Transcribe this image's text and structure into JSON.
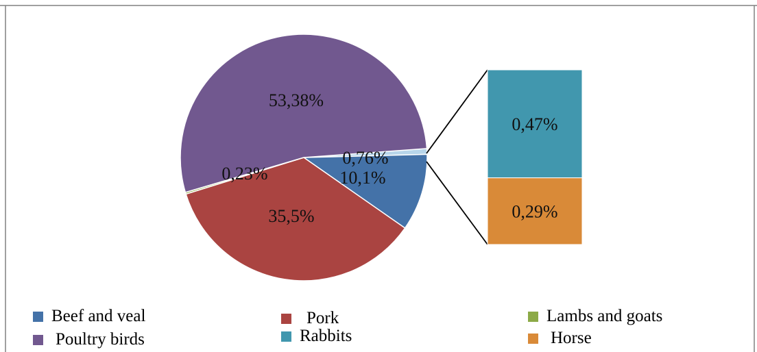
{
  "chart_data": {
    "type": "pie",
    "title": "",
    "subtitle": "",
    "labels_format": "comma-decimal",
    "slices": [
      {
        "name": "Beef and veal",
        "value": 10.1,
        "label": "10,1%",
        "color": "#4472a8"
      },
      {
        "name": "Pork",
        "value": 35.5,
        "label": "35,5%",
        "color": "#aa4441"
      },
      {
        "name": "Lambs and goats",
        "value": 0.23,
        "label": "0,23%",
        "color": "#8caa47"
      },
      {
        "name": "Poultry birds",
        "value": 53.38,
        "label": "53,38%",
        "color": "#71588f"
      },
      {
        "name": "Rabbits",
        "value": 0.47,
        "label": "0,76%",
        "color": "#4197ae",
        "note": "combined small-slice label shown on pie"
      },
      {
        "name": "Horse",
        "value": 0.29,
        "label": "",
        "color": "#d98a38"
      }
    ],
    "breakout": {
      "type": "bar-of-pie",
      "combined_label": "0,76%",
      "items": [
        {
          "name": "Rabbits",
          "value": 0.47,
          "label": "0,47%",
          "color": "#4197ae"
        },
        {
          "name": "Horse",
          "value": 0.29,
          "label": "0,29%",
          "color": "#d98a38"
        }
      ]
    },
    "legend": {
      "placement": "bottom",
      "items": [
        {
          "name": "Beef and veal",
          "color": "#4472a8"
        },
        {
          "name": "Pork",
          "color": "#aa4441"
        },
        {
          "name": "Lambs and goats",
          "color": "#8caa47"
        },
        {
          "name": "Poultry birds",
          "color": "#71588f"
        },
        {
          "name": "Rabbits",
          "color": "#4197ae"
        },
        {
          "name": "Horse",
          "color": "#d98a38"
        }
      ]
    }
  }
}
